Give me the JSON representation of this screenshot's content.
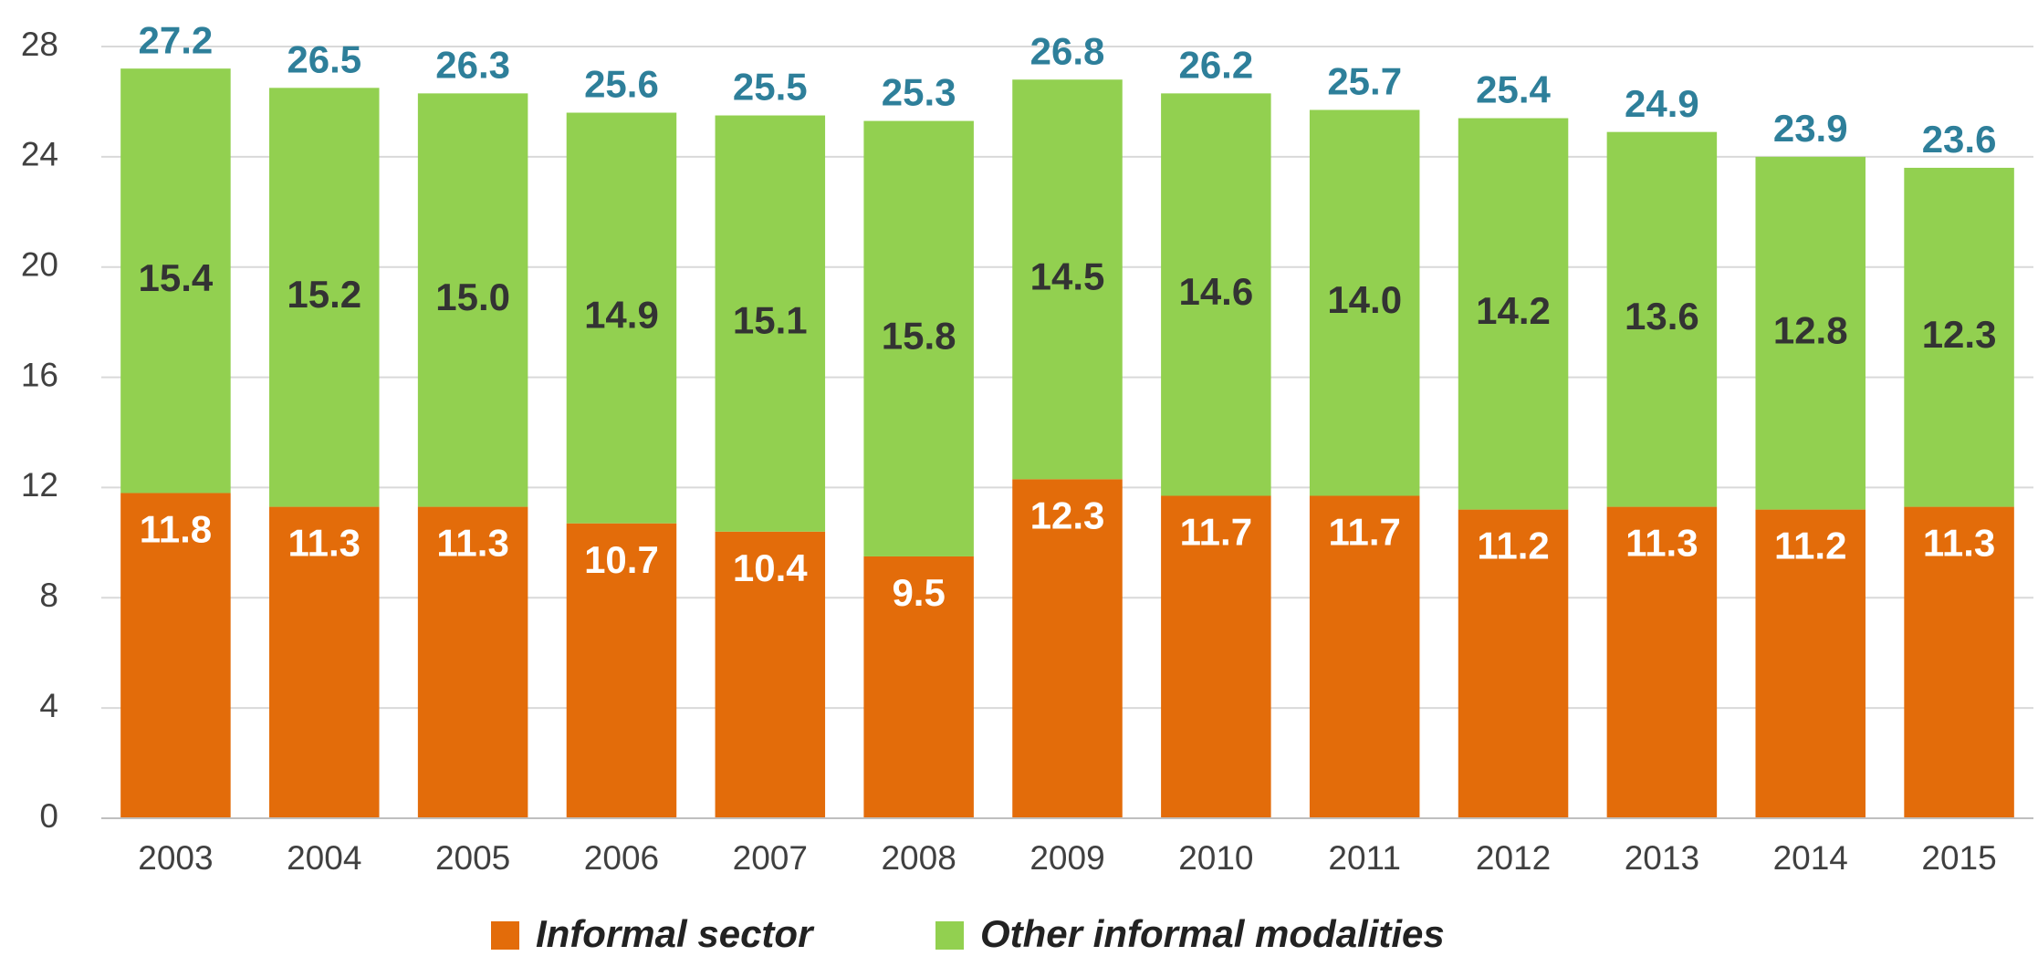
{
  "chart_data": {
    "type": "stacked_bar",
    "categories": [
      "2003",
      "2004",
      "2005",
      "2006",
      "2007",
      "2008",
      "2009",
      "2010",
      "2011",
      "2012",
      "2013",
      "2014",
      "2015"
    ],
    "series": [
      {
        "name": "Informal sector",
        "color": "#e36c0a",
        "values": [
          11.8,
          11.3,
          11.3,
          10.7,
          10.4,
          9.5,
          12.3,
          11.7,
          11.7,
          11.2,
          11.3,
          11.2,
          11.3
        ]
      },
      {
        "name": "Other informal modalities",
        "color": "#92d050",
        "values": [
          15.4,
          15.2,
          15.0,
          14.9,
          15.1,
          15.8,
          14.5,
          14.6,
          14.0,
          14.2,
          13.6,
          12.8,
          12.3
        ],
        "value_labels": [
          "15.4",
          "15.2",
          "15.0",
          "14.9",
          "15.1",
          "15.8",
          "14.5",
          "14.6",
          "14.0",
          "14.2",
          "13.6",
          "12.8",
          "12.3"
        ]
      }
    ],
    "totals": [
      27.2,
      26.5,
      26.3,
      25.6,
      25.5,
      25.3,
      26.8,
      26.2,
      25.7,
      25.4,
      24.9,
      23.9,
      23.6
    ],
    "ylim": [
      0,
      28
    ],
    "yticks": [
      0,
      4,
      8,
      12,
      16,
      20,
      24,
      28
    ],
    "grid": true,
    "legend": "bottom"
  }
}
